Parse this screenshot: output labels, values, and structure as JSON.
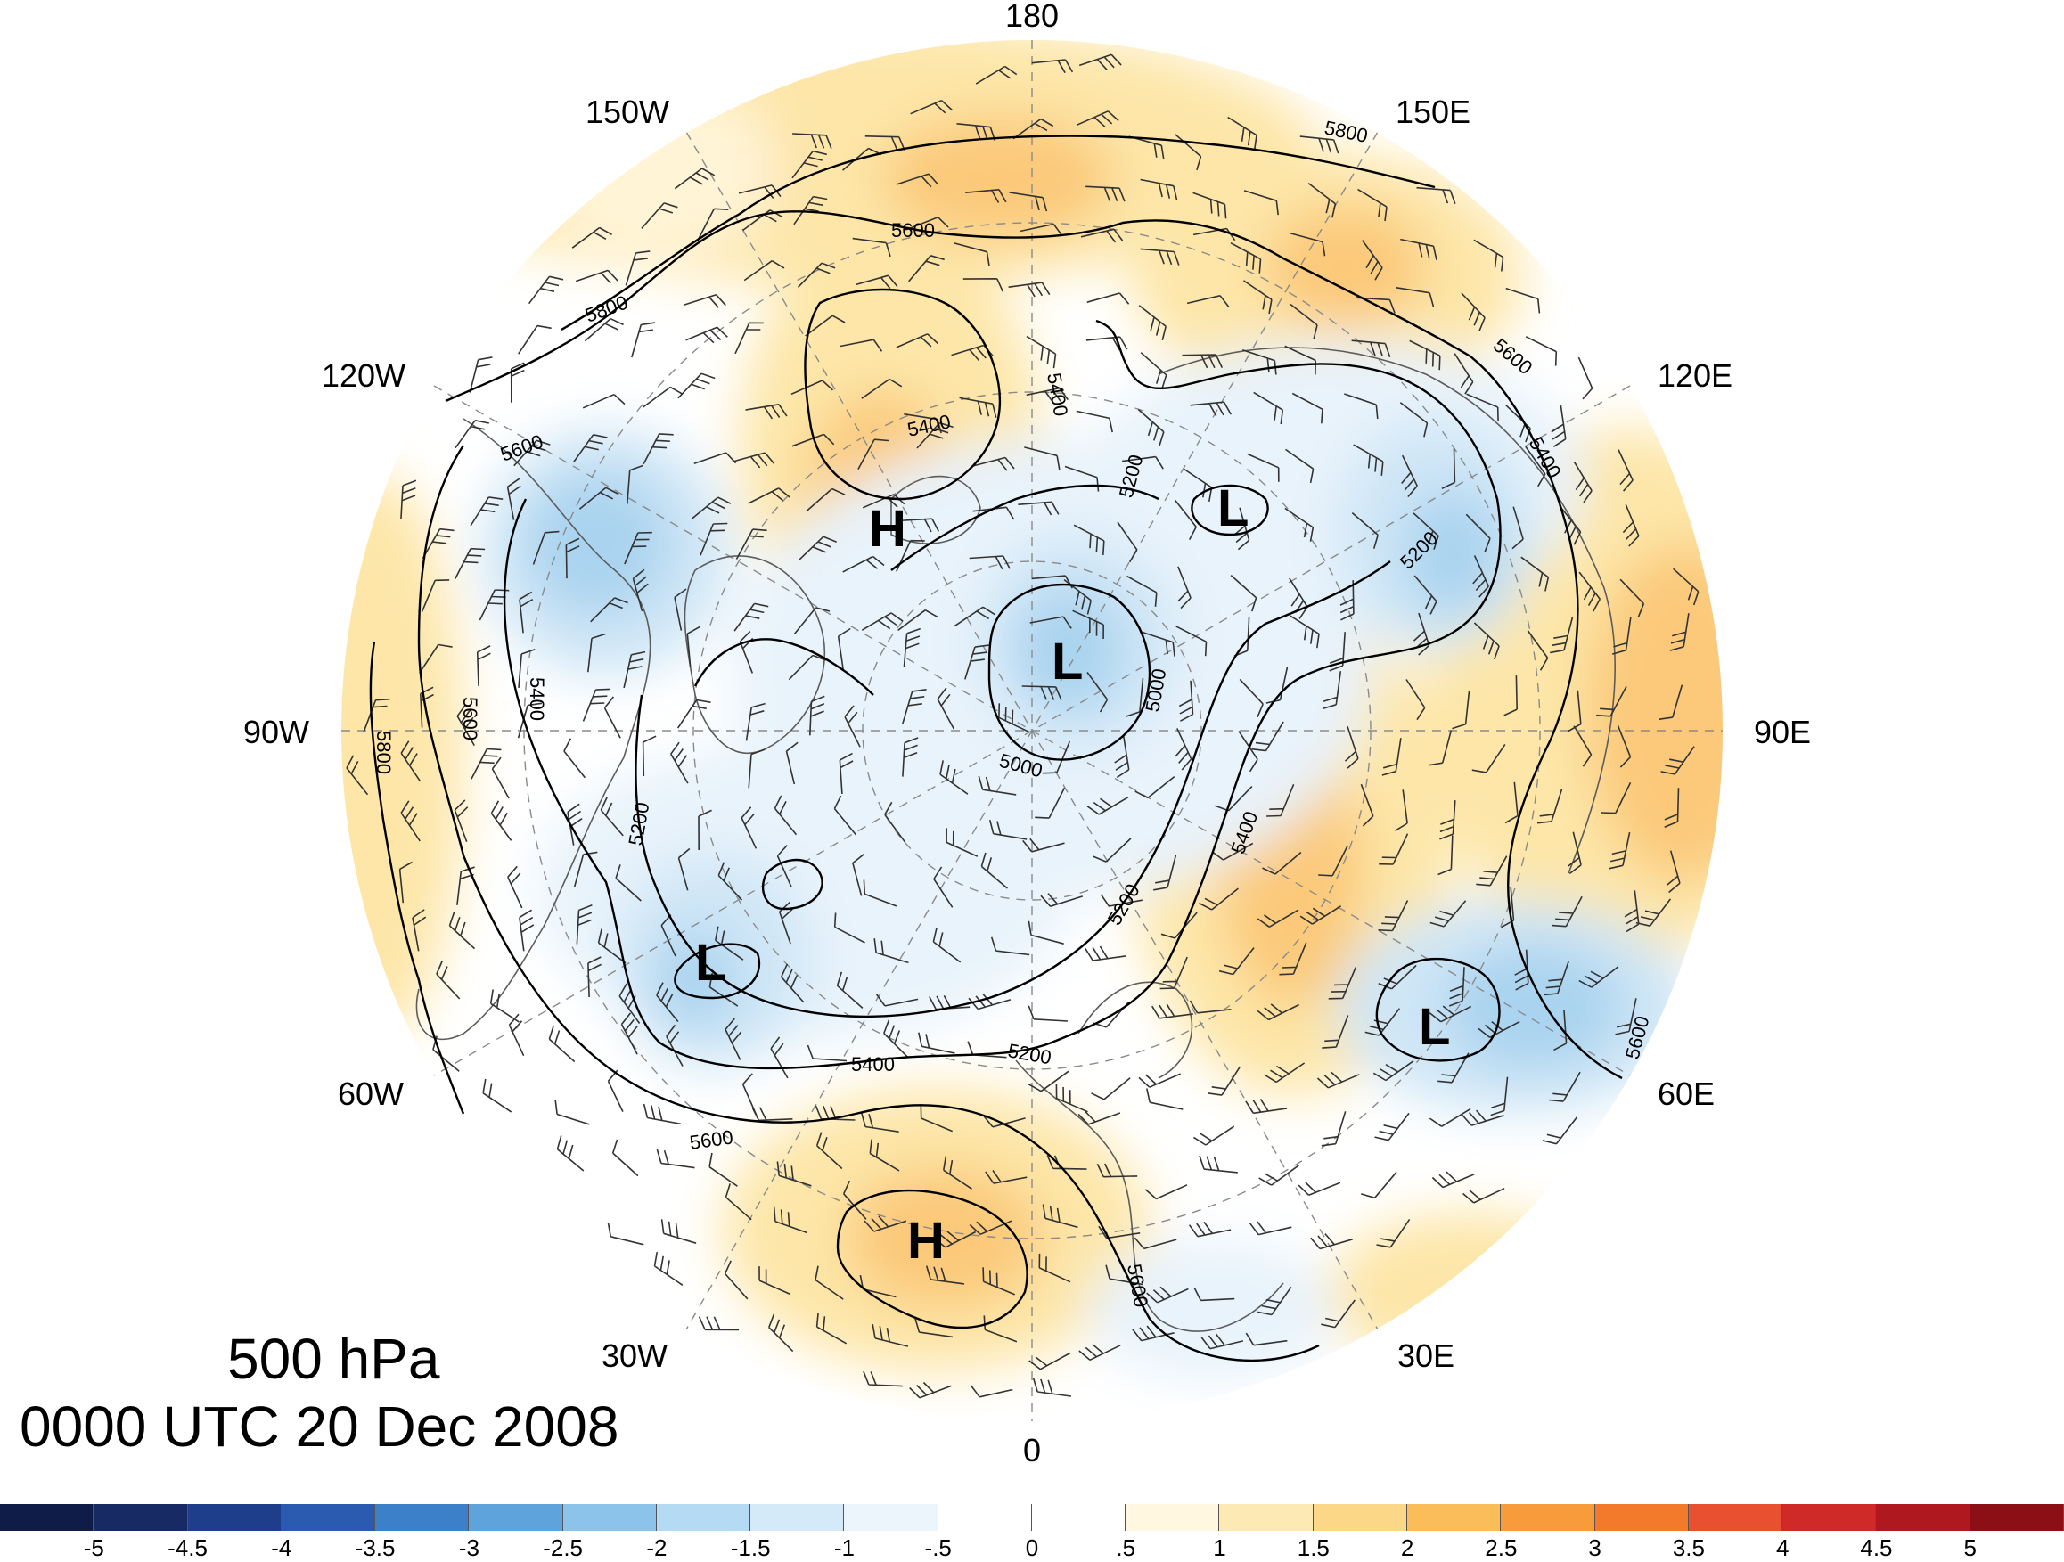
{
  "title": {
    "level": "500 hPa",
    "time": "0000 UTC 20 Dec 2008"
  },
  "longitude_labels": [
    "180",
    "150E",
    "120E",
    "90E",
    "60E",
    "30E",
    "0",
    "30W",
    "60W",
    "90W",
    "120W",
    "150W"
  ],
  "pressure_centers": [
    {
      "type": "H",
      "lon": -138,
      "lat": 68
    },
    {
      "type": "L",
      "lon": 150,
      "lat": 74
    },
    {
      "type": "L",
      "lon": 135,
      "lat": 86
    },
    {
      "type": "L",
      "lon": -65,
      "lat": 55
    },
    {
      "type": "L",
      "lon": 55,
      "lat": 55
    },
    {
      "type": "H",
      "lon": -20,
      "lat": 48
    }
  ],
  "contour_labels": [
    "5800",
    "5800",
    "5600",
    "5800",
    "5600",
    "5400",
    "5400",
    "5200",
    "5600",
    "5400",
    "5000",
    "5000",
    "5600",
    "5400",
    "5200",
    "5200",
    "5200",
    "5400",
    "5600",
    "5400",
    "5200",
    "5600",
    "5600",
    "5600"
  ],
  "colorbar": {
    "ticks": [
      "-5",
      "-4.5",
      "-4",
      "-3.5",
      "-3",
      "-2.5",
      "-2",
      "-1.5",
      "-1",
      "-.5",
      "0",
      ".5",
      "1",
      "1.5",
      "2",
      "2.5",
      "3",
      "3.5",
      "4",
      "4.5",
      "5"
    ],
    "colors": [
      "#172a63",
      "#1e3e8c",
      "#2b5bb0",
      "#3b80c8",
      "#5fa3dc",
      "#8cc3ea",
      "#b5dbf4",
      "#d5eaf8",
      "#ecf5fc",
      "#ffffff",
      "#ffffff",
      "#fff7e0",
      "#fde9b3",
      "#fcd787",
      "#fbbd5a",
      "#f89c3b",
      "#f27a2a",
      "#e85030",
      "#d02a28",
      "#b0181f",
      "#8c0f16"
    ]
  },
  "anomaly_colors": {
    "warm_light": "#fff4d6",
    "warm_mid": "#fde6a8",
    "warm_strong": "#fbc979",
    "warm_core": "#f6a64a",
    "cold_light": "#e8f3fb",
    "cold_mid": "#cfe6f6",
    "cold_strong": "#a9d3ef",
    "cold_core": "#7db9e3"
  }
}
